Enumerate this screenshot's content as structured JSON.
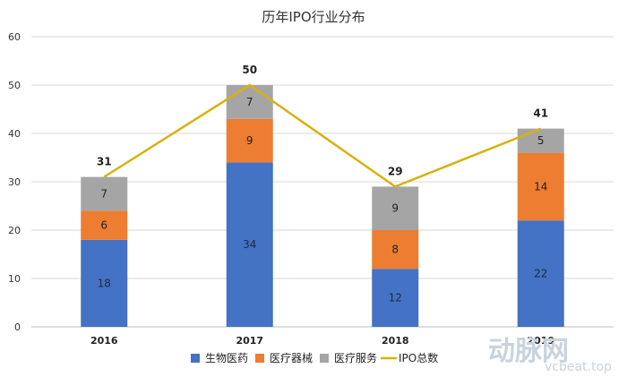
{
  "chart_data": {
    "type": "bar",
    "stacked": true,
    "title": "历年IPO行业分布",
    "xlabel": "",
    "ylabel": "",
    "categories": [
      "2016",
      "2017",
      "2018",
      "2019"
    ],
    "ylim": [
      0,
      60
    ],
    "yticks": [
      0,
      10,
      20,
      30,
      40,
      50,
      60
    ],
    "grid": true,
    "legend_position": "bottom",
    "series": [
      {
        "name": "生物医药",
        "type": "bar",
        "color": "#4472c4",
        "values": [
          18,
          34,
          12,
          22
        ]
      },
      {
        "name": "医疗器械",
        "type": "bar",
        "color": "#ed7d31",
        "values": [
          6,
          9,
          8,
          14
        ]
      },
      {
        "name": "医疗服务",
        "type": "bar",
        "color": "#a5a5a5",
        "values": [
          7,
          7,
          9,
          5
        ]
      },
      {
        "name": "IPO总数",
        "type": "line",
        "color": "#d8b10f",
        "values": [
          31,
          50,
          29,
          41
        ]
      }
    ]
  },
  "watermark": {
    "brand": "动脉网",
    "site": "vcbeat.top"
  }
}
